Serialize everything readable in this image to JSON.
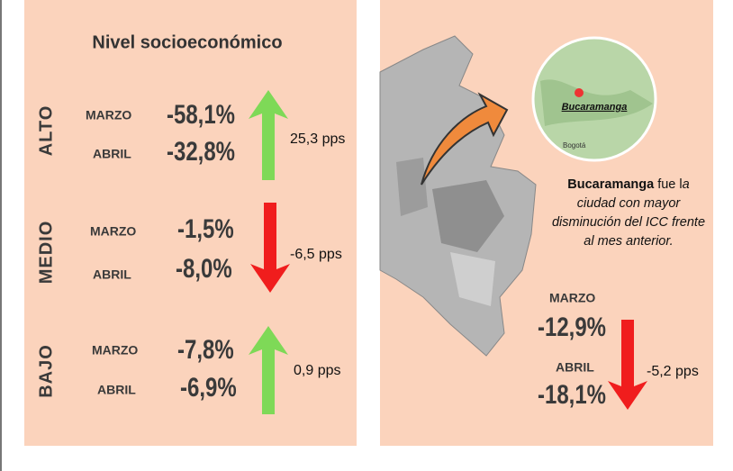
{
  "left_panel": {
    "title": "Nivel socioeconómico",
    "levels": [
      {
        "label": "ALTO",
        "rows": [
          {
            "month": "MARZO",
            "value": "-58,1%"
          },
          {
            "month": "ABRIL",
            "value": "-32,8%"
          }
        ],
        "change": "25,3 pps",
        "direction": "up"
      },
      {
        "label": "MEDIO",
        "rows": [
          {
            "month": "MARZO",
            "value": "-1,5%"
          },
          {
            "month": "ABRIL",
            "value": "-8,0%"
          }
        ],
        "change": "-6,5 pps",
        "direction": "down"
      },
      {
        "label": "BAJO",
        "rows": [
          {
            "month": "MARZO",
            "value": "-7,8%"
          },
          {
            "month": "ABRIL",
            "value": "-6,9%"
          }
        ],
        "change": "0,9  pps",
        "direction": "up"
      }
    ]
  },
  "right_panel": {
    "map_label": "Bucaramanga",
    "map_city": "Bogotá",
    "note_bold": "Bucaramanga",
    "note_plain": " fue l",
    "note_italic": "a ciudad con mayor disminución del ICC frente al mes anterior.",
    "rows": [
      {
        "month": "MARZO",
        "value": "-12,9%"
      },
      {
        "month": "ABRIL",
        "value": "-18,1%"
      }
    ],
    "change": "-5,2 pps",
    "direction": "down"
  }
}
